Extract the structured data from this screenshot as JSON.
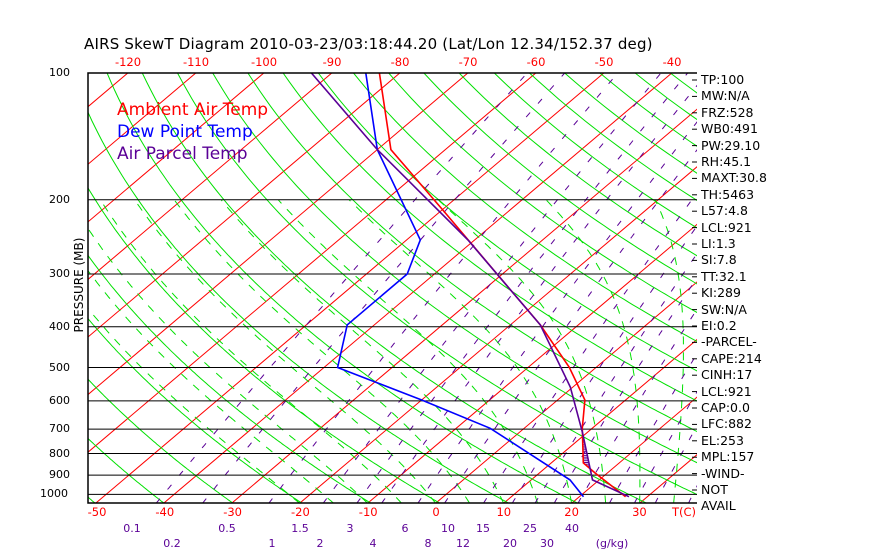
{
  "chart_data": {
    "type": "line",
    "subtype": "skew-t log-p",
    "title": "AIRS SkewT Diagram 2010-03-23/03:18:44.20 (Lat/Lon 12.34/152.37 deg)",
    "ylabel": "PRESSURE (MB)",
    "xlabel": "T(C)",
    "mixing_ratio_label": "(g/kg)",
    "pressure_ticks": [
      "100",
      "200",
      "300",
      "400",
      "500",
      "600",
      "700",
      "800",
      "900",
      "1000"
    ],
    "pressure_levels": [
      100,
      200,
      300,
      400,
      500,
      600,
      700,
      800,
      900,
      1000
    ],
    "ylim": [
      1048,
      100
    ],
    "top_temp_ticks": [
      "-120",
      "-110",
      "-100",
      "-90",
      "-80",
      "-70",
      "-60",
      "-50",
      "-40"
    ],
    "bottom_temp_ticks": [
      "-50",
      "-40",
      "-30",
      "-20",
      "-10",
      "0",
      "10",
      "20",
      "30"
    ],
    "mixing_ratio_ticks": [
      "0.1",
      "0.2",
      "0.5",
      "1",
      "1.5",
      "2",
      "3",
      "4",
      "6",
      "8",
      "10",
      "12",
      "15",
      "20",
      "25",
      "30",
      "40"
    ],
    "legend": [
      {
        "label": "Ambient Air Temp",
        "color": "#ff0000"
      },
      {
        "label": "Dew Point Temp",
        "color": "#0000ff"
      },
      {
        "label": "Air Parcel Temp",
        "color": "#5a0096"
      }
    ],
    "series": [
      {
        "name": "Ambient Air Temp",
        "color": "#ff0000",
        "points": [
          [
            100,
            -83
          ],
          [
            152,
            -68
          ],
          [
            211,
            -50
          ],
          [
            310,
            -29
          ],
          [
            396,
            -15.6
          ],
          [
            499,
            -4
          ],
          [
            597,
            4
          ],
          [
            696,
            8.5
          ],
          [
            842,
            14.7
          ],
          [
            890,
            18.2
          ],
          [
            1013,
            26.8
          ]
        ]
      },
      {
        "name": "Dew Point Temp",
        "color": "#0000ff",
        "points": [
          [
            100,
            -85
          ],
          [
            152,
            -70
          ],
          [
            249,
            -48
          ],
          [
            300,
            -44
          ],
          [
            396,
            -44
          ],
          [
            500,
            -38
          ],
          [
            597,
            -20
          ],
          [
            697,
            -5
          ],
          [
            924,
            15.7
          ],
          [
            1013,
            20.6
          ]
        ]
      },
      {
        "name": "Air Parcel Temp",
        "color": "#5a0096",
        "points": [
          [
            100,
            -93
          ],
          [
            152,
            -70
          ],
          [
            249,
            -41
          ],
          [
            396,
            -15.6
          ],
          [
            556,
            -0.4
          ],
          [
            715,
            9.4
          ],
          [
            924,
            19
          ],
          [
            1013,
            27.3
          ]
        ]
      }
    ]
  },
  "stats": [
    "TP:100",
    "MW:N/A",
    "FRZ:528",
    "WB0:491",
    "PW:29.10",
    "RH:45.1",
    "MAXT:30.8",
    "TH:5463",
    "L57:4.8",
    "LCL:921",
    "LI:1.3",
    "SI:7.8",
    "TT:32.1",
    "KI:289",
    "SW:N/A",
    "EI:0.2",
    "-PARCEL-",
    "CAPE:214",
    "CINH:17",
    "LCL:921",
    "CAP:0.0",
    "LFC:882",
    "EL:253",
    "MPL:157",
    "-WIND-",
    "NOT",
    "AVAIL"
  ],
  "colors": {
    "isotherm": "#ff0000",
    "dry_adiabat": "#00e000",
    "moist_adiabat": "#00e000",
    "mixing_ratio": "#5a0096",
    "isobar": "#000000"
  }
}
